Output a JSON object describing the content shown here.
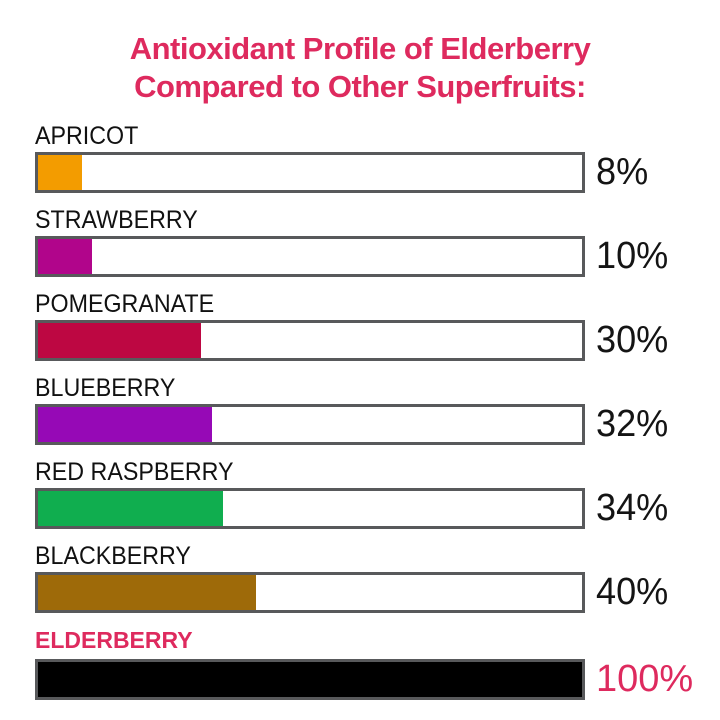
{
  "page": {
    "background": "#ffffff",
    "accent_color": "#de2a5e"
  },
  "title": {
    "line1": "Antioxidant Profile of Elderberry",
    "line2": "Compared to Other Superfruits:",
    "color": "#de2a5e"
  },
  "chart_data": {
    "type": "bar",
    "orientation": "horizontal",
    "title": "Antioxidant Profile of Elderberry Compared to Other Superfruits:",
    "xlabel": "",
    "ylabel": "",
    "unit": "%",
    "xlim": [
      0,
      100
    ],
    "grid": false,
    "legend": false,
    "categories": [
      "APRICOT",
      "STRAWBERRY",
      "POMEGRANATE",
      "BLUEBERRY",
      "RED RASPBERRY",
      "BLACKBERRY",
      "ELDERBERRY"
    ],
    "values": [
      8,
      10,
      30,
      32,
      34,
      40,
      100
    ],
    "value_labels": [
      "8%",
      "10%",
      "30%",
      "32%",
      "34%",
      "40%",
      "100%"
    ],
    "bar_colors": [
      "#f39c00",
      "#b1058b",
      "#bd0742",
      "#9609b6",
      "#10ae4f",
      "#9e6a09",
      "#000000"
    ],
    "track_border_color": "#58595b",
    "track_background": "#ffffff",
    "highlight_category": "ELDERBERRY",
    "highlight_text_color": "#de2a5e",
    "rows": [
      {
        "label": "APRICOT",
        "value": 8,
        "value_label": "8%",
        "color": "#f39c00",
        "highlight": false
      },
      {
        "label": "STRAWBERRY",
        "value": 10,
        "value_label": "10%",
        "color": "#b1058b",
        "highlight": false
      },
      {
        "label": "POMEGRANATE",
        "value": 30,
        "value_label": "30%",
        "color": "#bd0742",
        "highlight": false
      },
      {
        "label": "BLUEBERRY",
        "value": 32,
        "value_label": "32%",
        "color": "#9609b6",
        "highlight": false
      },
      {
        "label": "RED RASPBERRY",
        "value": 34,
        "value_label": "34%",
        "color": "#10ae4f",
        "highlight": false
      },
      {
        "label": "BLACKBERRY",
        "value": 40,
        "value_label": "40%",
        "color": "#9e6a09",
        "highlight": false
      },
      {
        "label": "ELDERBERRY",
        "value": 100,
        "value_label": "100%",
        "color": "#000000",
        "highlight": true
      }
    ]
  }
}
